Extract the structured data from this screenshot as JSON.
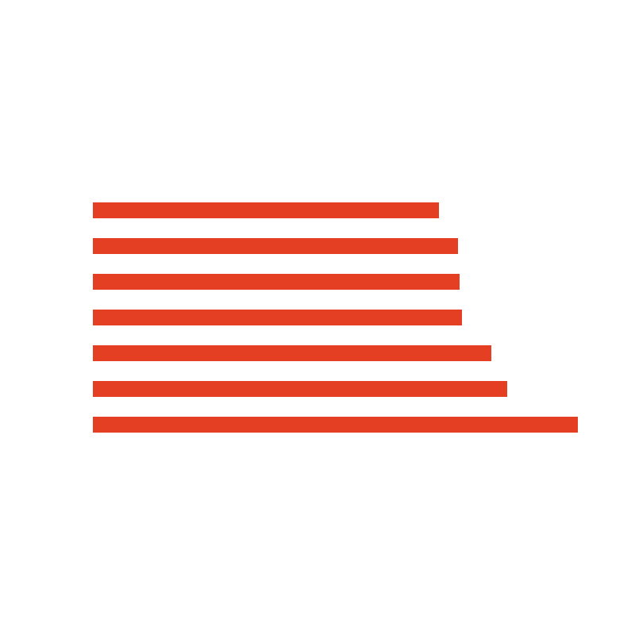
{
  "chart_data": {
    "type": "bar",
    "orientation": "horizontal",
    "values": [
      436,
      460,
      462,
      465,
      502,
      522,
      611
    ],
    "color": "#e43f22"
  }
}
